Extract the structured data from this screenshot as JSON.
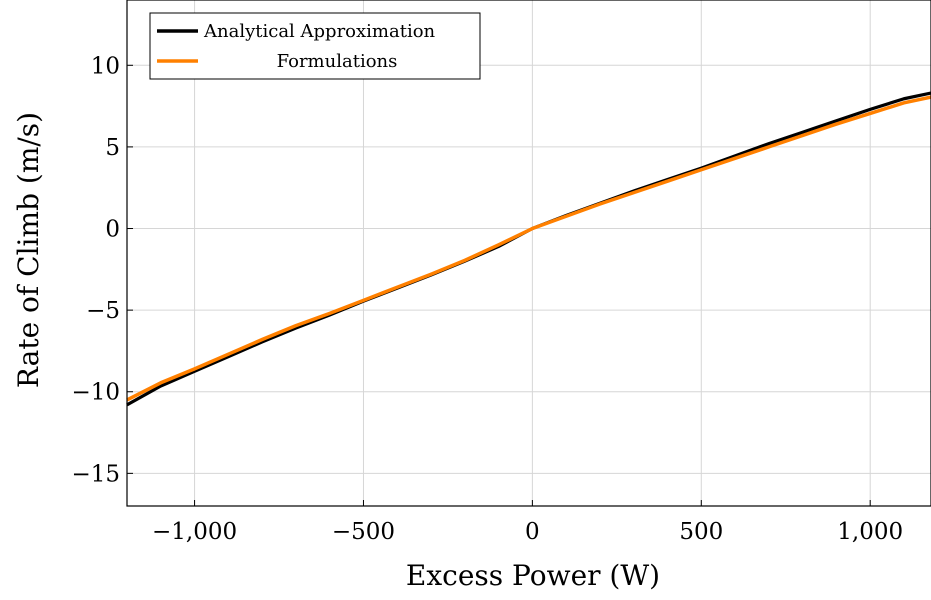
{
  "chart_data": {
    "type": "line",
    "xlabel": "Excess Power (W)",
    "ylabel": "Rate of Climb (m/s)",
    "xlim": [
      -1200,
      1180
    ],
    "ylim": [
      -17,
      14
    ],
    "x_ticks": [
      -1000,
      -500,
      0,
      500,
      1000
    ],
    "x_tick_labels": [
      "−1,000",
      "−500",
      "0",
      "500",
      "1,000"
    ],
    "y_ticks": [
      -15,
      -10,
      -5,
      0,
      5,
      10
    ],
    "y_tick_labels": [
      "−15",
      "−10",
      "−5",
      "0",
      "5",
      "10"
    ],
    "grid": true,
    "legend_position": "top-left",
    "series": [
      {
        "name": "Analytical Approximation",
        "color": "#000000",
        "x": [
          -1200,
          -1100,
          -1000,
          -900,
          -800,
          -700,
          -600,
          -500,
          -400,
          -300,
          -200,
          -100,
          0,
          100,
          200,
          300,
          400,
          500,
          600,
          700,
          800,
          900,
          1000,
          1100,
          1180
        ],
        "y": [
          -10.8,
          -9.65,
          -8.75,
          -7.85,
          -6.95,
          -6.1,
          -5.3,
          -4.45,
          -3.65,
          -2.85,
          -2.0,
          -1.1,
          0.0,
          0.8,
          1.55,
          2.3,
          3.0,
          3.7,
          4.45,
          5.2,
          5.9,
          6.6,
          7.3,
          7.95,
          8.3
        ]
      },
      {
        "name": "Formulations",
        "color": "#ff8000",
        "x": [
          -1200,
          -1100,
          -1000,
          -900,
          -800,
          -700,
          -600,
          -500,
          -400,
          -300,
          -200,
          -100,
          0,
          100,
          200,
          300,
          400,
          500,
          600,
          700,
          800,
          900,
          1000,
          1100,
          1180
        ],
        "y": [
          -10.5,
          -9.45,
          -8.6,
          -7.7,
          -6.8,
          -5.95,
          -5.2,
          -4.4,
          -3.6,
          -2.8,
          -1.95,
          -1.0,
          0.0,
          0.75,
          1.5,
          2.2,
          2.9,
          3.6,
          4.3,
          5.0,
          5.7,
          6.4,
          7.05,
          7.7,
          8.05
        ]
      }
    ]
  }
}
